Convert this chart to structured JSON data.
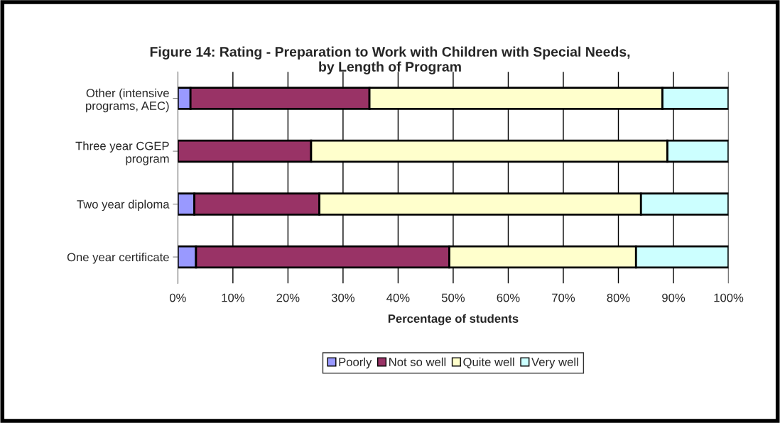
{
  "chart_data": {
    "type": "bar",
    "orientation": "horizontal",
    "stacked": true,
    "title": "Figure 14: Rating - Preparation to Work with Children with Special Needs,\nby Length of Program",
    "xlabel": "Percentage of students",
    "categories": [
      "Other (intensive\nprograms, AEC)",
      "Three year CGEP\nprogram",
      "Two year diploma",
      "One year certificate"
    ],
    "series": [
      {
        "name": "Poorly",
        "color": "#9999ff",
        "values": [
          2.3,
          0,
          3.0,
          3.3
        ]
      },
      {
        "name": "Not so well",
        "color": "#993366",
        "values": [
          32.5,
          24.2,
          22.7,
          46.0
        ]
      },
      {
        "name": "Quite well",
        "color": "#ffffcc",
        "values": [
          53.2,
          64.7,
          58.4,
          33.9
        ]
      },
      {
        "name": "Very well",
        "color": "#ccffff",
        "values": [
          12.0,
          11.1,
          15.9,
          16.8
        ]
      }
    ],
    "xlim": [
      0,
      100
    ],
    "xticks": [
      {
        "value": 0,
        "label": "0%"
      },
      {
        "value": 10,
        "label": "10%"
      },
      {
        "value": 20,
        "label": "20%"
      },
      {
        "value": 30,
        "label": "30%"
      },
      {
        "value": 40,
        "label": "40%"
      },
      {
        "value": 50,
        "label": "50%"
      },
      {
        "value": 60,
        "label": "60%"
      },
      {
        "value": 70,
        "label": "70%"
      },
      {
        "value": 80,
        "label": "80%"
      },
      {
        "value": 90,
        "label": "90%"
      },
      {
        "value": 100,
        "label": "100%"
      }
    ],
    "grid": "x",
    "legend": "bottom"
  }
}
